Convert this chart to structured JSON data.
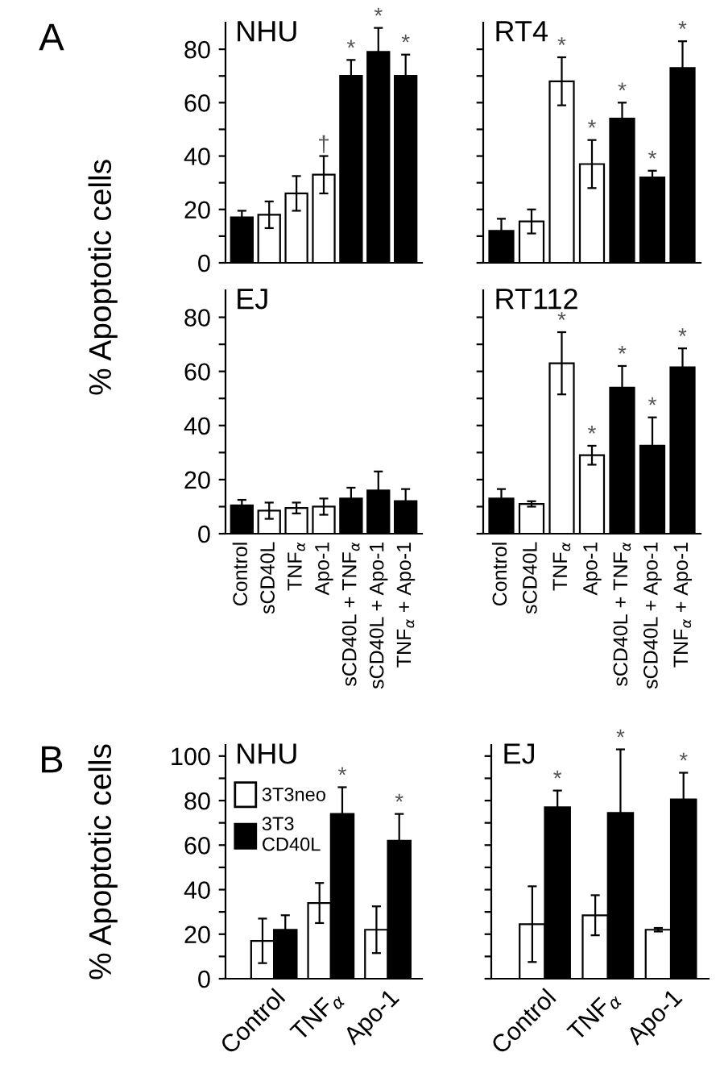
{
  "chart_data": [
    {
      "type": "bar",
      "title": "NHU",
      "ylabel": "% Apoptotic cells",
      "annotations": [
        "A",
        {
          "text": "†",
          "x": "Apo-1",
          "y": 40
        },
        {
          "text": "*",
          "x": "sCD40L + TNF$_{α}$",
          "y": 76
        },
        {
          "text": "*",
          "x": "sCD40L + Apo-1",
          "y": 88
        },
        {
          "text": "*",
          "x": "TNF$_{α}$ + Apo-1",
          "y": 78
        }
      ],
      "categories": [
        "Control",
        "sCD40L",
        "TNF$_{α}$",
        "Apo-1",
        "sCD40L + TNF$_{α}$",
        "sCD40L + Apo-1",
        "TNF$_{α}$ + Apo-1"
      ],
      "values": [
        17,
        18,
        26,
        33,
        70,
        79,
        70
      ],
      "errors": [
        2.5,
        5,
        6.5,
        7,
        6,
        9,
        8
      ],
      "colors": [
        "#000000",
        "#ffffff",
        "#ffffff",
        "#ffffff",
        "#000000",
        "#000000",
        "#000000"
      ],
      "ylim": [
        0,
        90
      ],
      "yticks": [
        0,
        {
          "value": 10,
          "label": null
        },
        20,
        {
          "value": 30,
          "label": null
        },
        40,
        {
          "value": 50,
          "label": null
        },
        60,
        {
          "value": 70,
          "label": null
        },
        80
      ],
      "tick_labels": "y"
    },
    {
      "type": "bar",
      "title": "RT4",
      "annotations": [
        {
          "text": "*",
          "x": "TNF$_{α}$",
          "y": 77
        },
        {
          "text": "*",
          "x": "Apo-1",
          "y": 46
        },
        {
          "text": "*",
          "x": "sCD40L + TNF$_{α}$",
          "y": 60
        },
        {
          "text": "*",
          "x": "sCD40L + Apo-1",
          "y": 34.5
        },
        {
          "text": "*",
          "x": "TNF$_{α}$ + Apo-1",
          "y": 83
        }
      ],
      "categories": [
        "Control",
        "sCD40L",
        "TNF$_{α}$",
        "Apo-1",
        "sCD40L + TNF$_{α}$",
        "sCD40L + Apo-1",
        "TNF$_{α}$ + Apo-1"
      ],
      "values": [
        12,
        15.5,
        68,
        37,
        54,
        32,
        73
      ],
      "errors": [
        4.5,
        4.5,
        9,
        9,
        6,
        2.5,
        10
      ],
      "colors": [
        "#000000",
        "#ffffff",
        "#ffffff",
        "#ffffff",
        "#000000",
        "#000000",
        "#000000"
      ],
      "ylim": [
        0,
        90
      ],
      "yticks": [
        0,
        {
          "value": 10,
          "label": null
        },
        20,
        {
          "value": 30,
          "label": null
        },
        40,
        {
          "value": 50,
          "label": null
        },
        60,
        {
          "value": 70,
          "label": null
        },
        80
      ],
      "tick_labels": false
    },
    {
      "type": "bar",
      "title": "EJ",
      "categories": [
        "Control",
        "sCD40L",
        "TNF$_{α}$",
        "Apo-1",
        "sCD40L + TNF$_{α}$",
        "sCD40L + Apo-1",
        "TNF$_{α}$ + Apo-1"
      ],
      "values": [
        10.5,
        8.5,
        9.5,
        10,
        13,
        16,
        12
      ],
      "errors": [
        2,
        3,
        2,
        3,
        4,
        7,
        4.5
      ],
      "colors": [
        "#000000",
        "#ffffff",
        "#ffffff",
        "#ffffff",
        "#000000",
        "#000000",
        "#000000"
      ],
      "ylim": [
        0,
        90
      ],
      "yticks": [
        0,
        {
          "value": 10,
          "label": null
        },
        20,
        {
          "value": 30,
          "label": null
        },
        40,
        {
          "value": 50,
          "label": null
        },
        60,
        {
          "value": 70,
          "label": null
        },
        80
      ]
    },
    {
      "type": "bar",
      "title": "RT112",
      "annotations": [
        {
          "text": "*",
          "x": "TNF$_{α}$",
          "y": 74.5
        },
        {
          "text": "*",
          "x": "Apo-1",
          "y": 32.5
        },
        {
          "text": "*",
          "x": "sCD40L + TNF$_{α}$",
          "y": 62
        },
        {
          "text": "*",
          "x": "sCD40L + Apo-1",
          "y": 43
        },
        {
          "text": "*",
          "x": "TNF$_{α}$ + Apo-1",
          "y": 68.5
        }
      ],
      "categories": [
        "Control",
        "sCD40L",
        "TNF$_{α}$",
        "Apo-1",
        "sCD40L + TNF$_{α}$",
        "sCD40L + Apo-1",
        "TNF$_{α}$ + Apo-1"
      ],
      "values": [
        13,
        11,
        63,
        29,
        54,
        32.5,
        61.5
      ],
      "errors": [
        3.5,
        1,
        11.5,
        3.5,
        8,
        10.5,
        7
      ],
      "colors": [
        "#000000",
        "#ffffff",
        "#ffffff",
        "#ffffff",
        "#000000",
        "#000000",
        "#000000"
      ],
      "ylim": [
        0,
        90
      ],
      "yticks": [
        0,
        {
          "value": 10,
          "label": null
        },
        20,
        {
          "value": 30,
          "label": null
        },
        40,
        {
          "value": 50,
          "label": null
        },
        60,
        {
          "value": 70,
          "label": null
        },
        80
      ],
      "tick_labels": "x"
    },
    {
      "type": "bar",
      "title": "NHU",
      "ylabel": "% Apoptotic cells",
      "legend": "top left",
      "annotations": [
        "B",
        {
          "text": "*",
          "x": "TNF$_{α}$",
          "y": 86
        },
        {
          "text": "*",
          "x": "Apo-1",
          "y": 74
        }
      ],
      "categories": [
        "Control",
        "TNF$_{α}$",
        "Apo-1"
      ],
      "series": [
        {
          "name": "3T3neo",
          "color": "#ffffff",
          "values": [
            17,
            34,
            22
          ],
          "errors": [
            10,
            9,
            10.5
          ]
        },
        {
          "name": "3T3\nCD40L",
          "color": "#000000",
          "values": [
            22,
            74,
            62
          ],
          "errors": [
            6.5,
            12,
            12
          ]
        }
      ],
      "ylim": [
        0,
        105
      ],
      "yticks": [
        0,
        {
          "value": 10,
          "label": null
        },
        20,
        {
          "value": 30,
          "label": null
        },
        40,
        {
          "value": 50,
          "label": null
        },
        60,
        {
          "value": 70,
          "label": null
        },
        80,
        {
          "value": 90,
          "label": null
        },
        100
      ]
    },
    {
      "type": "bar",
      "title": "EJ",
      "annotations": [
        {
          "text": "*",
          "x": "Control",
          "y": 84.5
        },
        {
          "text": "*",
          "x": "TNF$_{α}$",
          "y": 103
        },
        {
          "text": "*",
          "x": "Apo-1",
          "y": 92.5
        }
      ],
      "categories": [
        "Control",
        "TNF$_{α}$",
        "Apo-1"
      ],
      "series": [
        {
          "color": "#ffffff",
          "values": [
            24.5,
            28.5,
            22
          ],
          "errors": [
            17,
            9,
            0.8
          ]
        },
        {
          "color": "#000000",
          "values": [
            77,
            74.5,
            80.5
          ],
          "errors": [
            7.5,
            28.5,
            12
          ]
        }
      ],
      "ylim": [
        0,
        105
      ],
      "yticks": [
        0,
        {
          "value": 10,
          "label": null
        },
        20,
        {
          "value": 30,
          "label": null
        },
        40,
        {
          "value": 50,
          "label": null
        },
        60,
        {
          "value": 70,
          "label": null
        },
        80,
        {
          "value": 90,
          "label": null
        },
        100
      ],
      "tick_labels": "x"
    }
  ]
}
